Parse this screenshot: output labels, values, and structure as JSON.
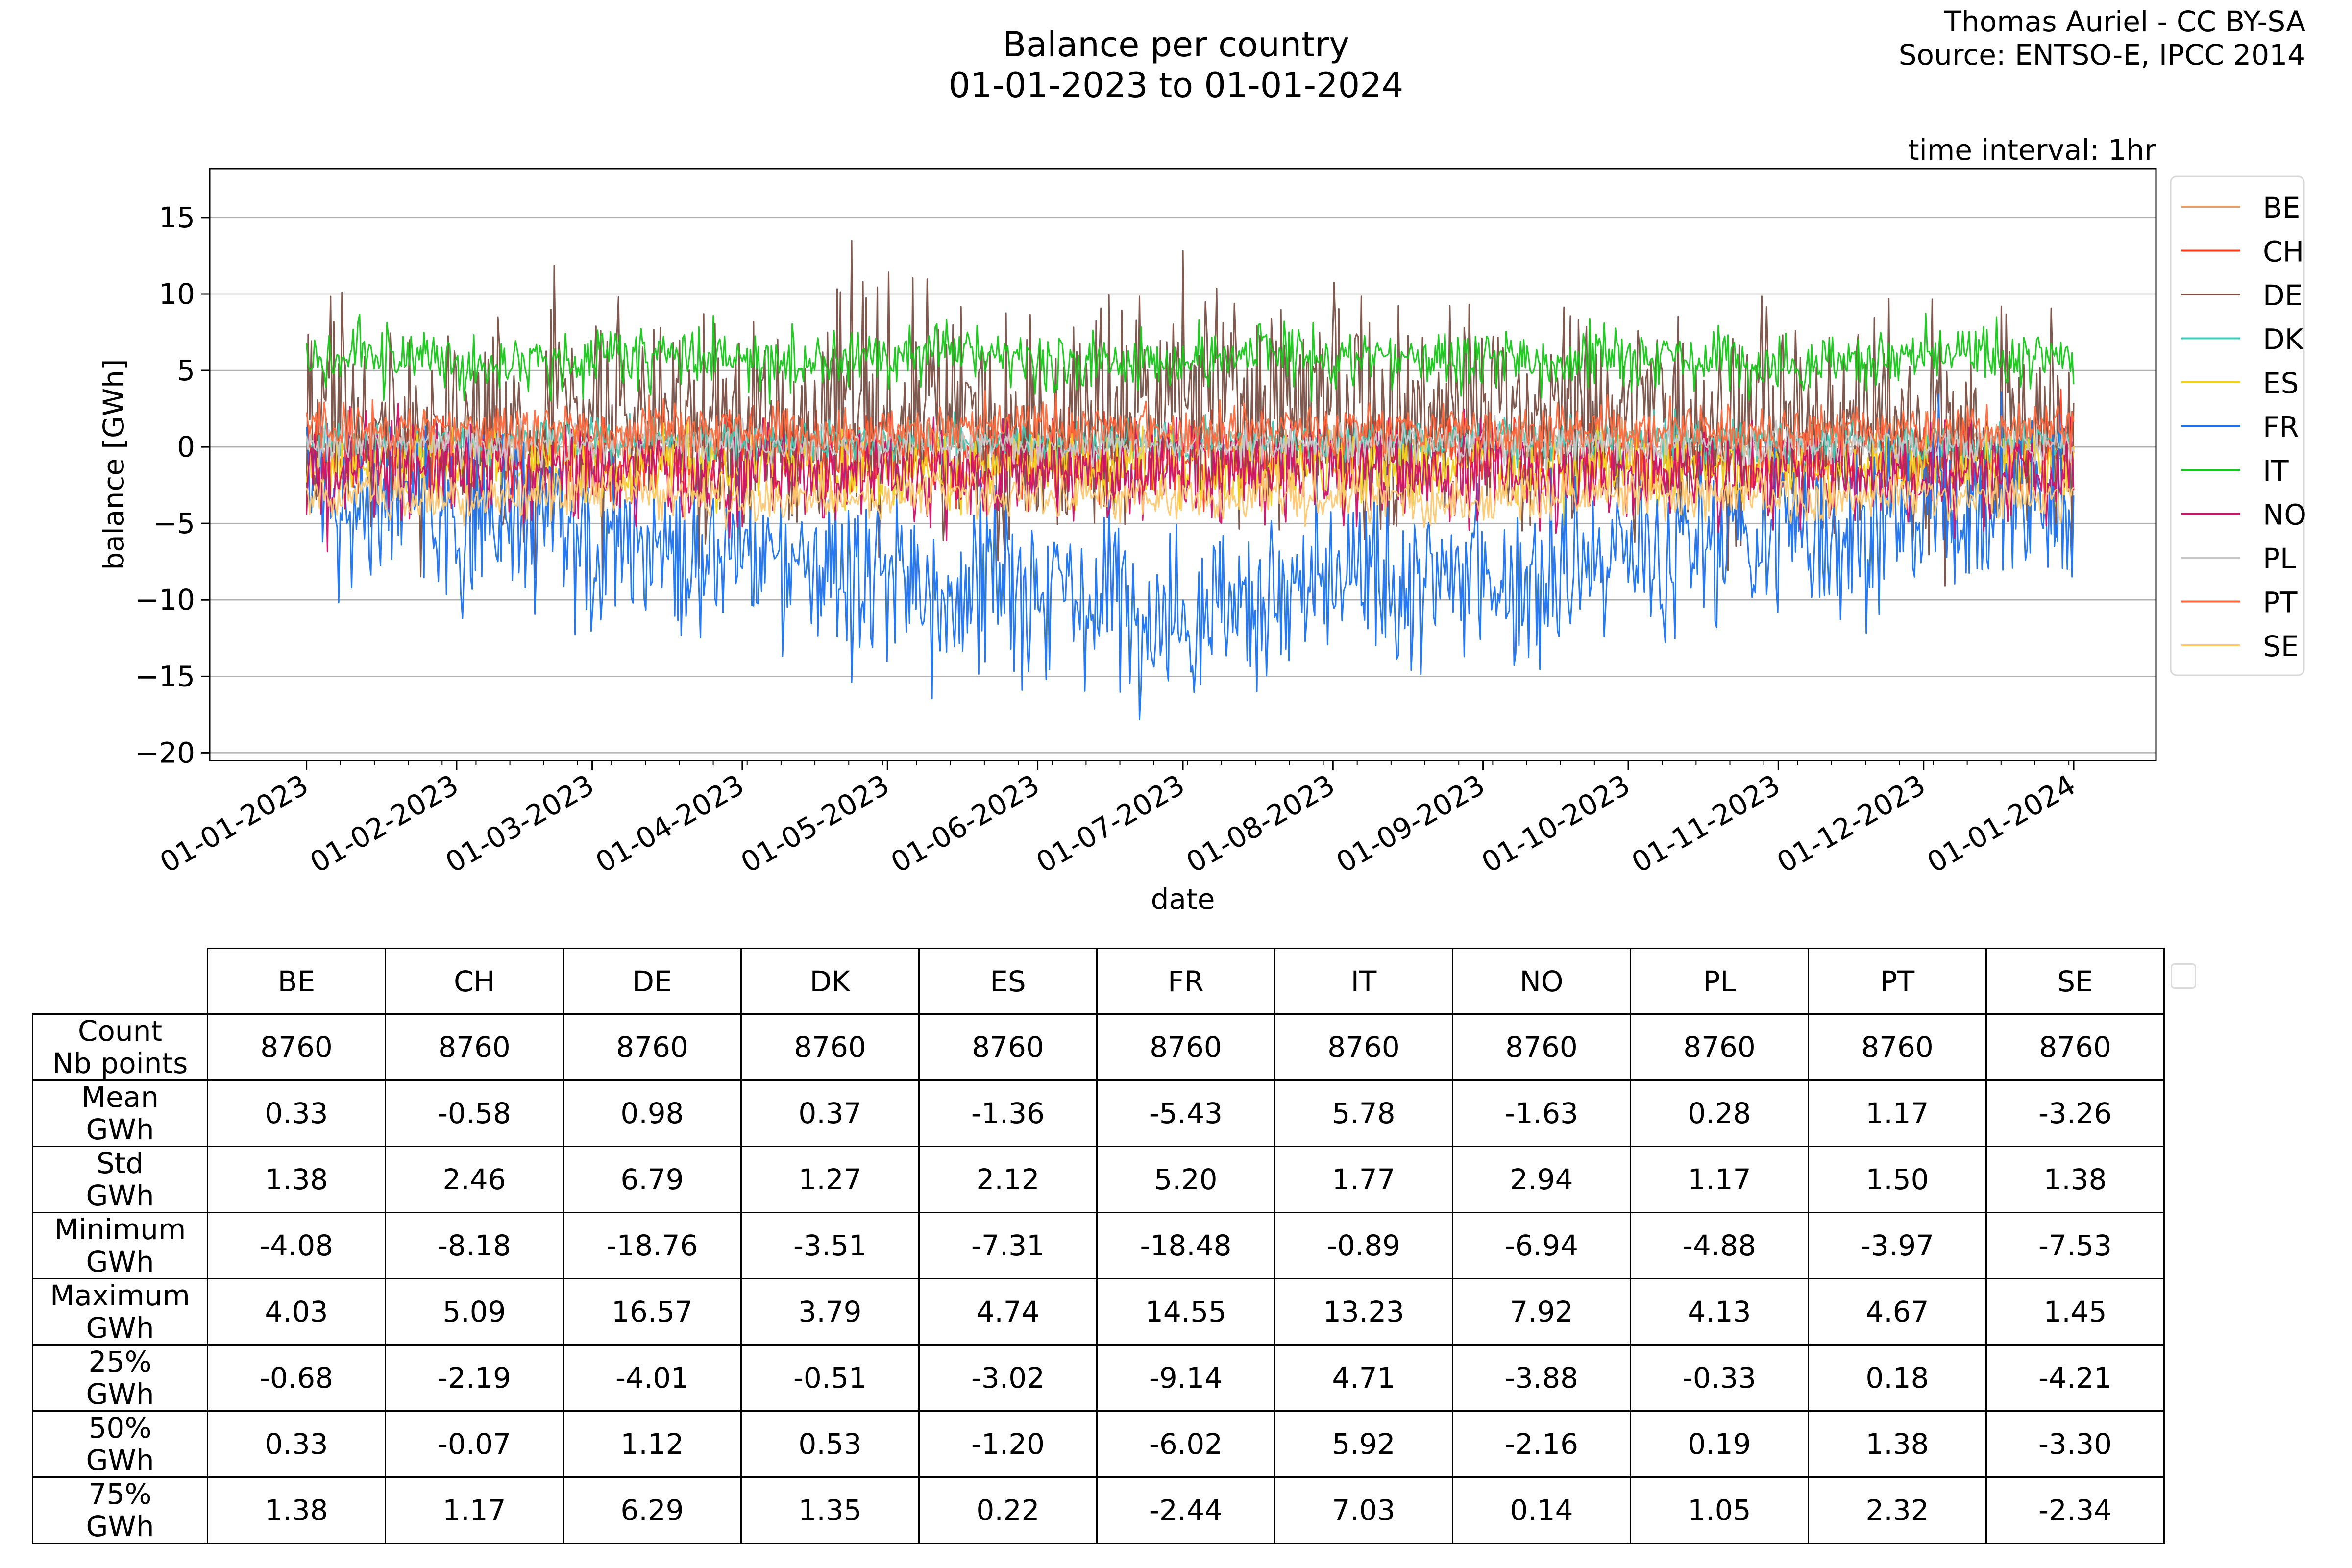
{
  "credit": {
    "line1": "Thomas Auriel - CC BY-SA",
    "line2": "Source: ENTSO-E, IPCC 2014"
  },
  "chart_data": {
    "type": "line",
    "title": "Balance per country",
    "subtitle": "01-01-2023 to 01-01-2024",
    "annotation": "time interval: 1hr",
    "xlabel": "date",
    "ylabel": "balance [GWh]",
    "ylim": [
      -20.5,
      18.2
    ],
    "xlim": [
      "2022-12-12",
      "2024-01-18"
    ],
    "x_ticks": [
      "01-01-2023",
      "01-02-2023",
      "01-03-2023",
      "01-04-2023",
      "01-05-2023",
      "01-06-2023",
      "01-07-2023",
      "01-08-2023",
      "01-09-2023",
      "01-10-2023",
      "01-11-2023",
      "01-12-2023",
      "01-01-2024"
    ],
    "y_ticks": [
      15,
      10,
      5,
      0,
      -5,
      -10,
      -15,
      -20
    ],
    "grid": "horizontal",
    "legend_position": "right",
    "series": [
      {
        "name": "BE",
        "color": "#e0a070",
        "mean": 0.33,
        "std": 1.38,
        "min": -4.08,
        "max": 4.03
      },
      {
        "name": "CH",
        "color": "#ff3b1f",
        "mean": -0.58,
        "std": 2.46,
        "min": -8.18,
        "max": 5.09
      },
      {
        "name": "DE",
        "color": "#7a5044",
        "mean": 0.98,
        "std": 6.79,
        "min": -18.76,
        "max": 16.57
      },
      {
        "name": "DK",
        "color": "#3cc8b4",
        "mean": 0.37,
        "std": 1.27,
        "min": -3.51,
        "max": 3.79
      },
      {
        "name": "ES",
        "color": "#f2d21a",
        "mean": -1.36,
        "std": 2.12,
        "min": -7.31,
        "max": 4.74
      },
      {
        "name": "FR",
        "color": "#1a72f0",
        "mean": -5.43,
        "std": 5.2,
        "min": -18.48,
        "max": 14.55
      },
      {
        "name": "IT",
        "color": "#16c817",
        "mean": 5.78,
        "std": 1.77,
        "min": -0.89,
        "max": 13.23
      },
      {
        "name": "NO",
        "color": "#d0106a",
        "mean": -1.63,
        "std": 2.94,
        "min": -6.94,
        "max": 7.92
      },
      {
        "name": "PL",
        "color": "#c8c8c8",
        "mean": 0.28,
        "std": 1.17,
        "min": -4.88,
        "max": 4.13
      },
      {
        "name": "PT",
        "color": "#ff6a3d",
        "mean": 1.17,
        "std": 1.5,
        "min": -3.97,
        "max": 4.67
      },
      {
        "name": "SE",
        "color": "#ffc870",
        "mean": -3.26,
        "std": 1.38,
        "min": -7.53,
        "max": 1.45
      }
    ]
  },
  "table": {
    "columns": [
      "BE",
      "CH",
      "DE",
      "DK",
      "ES",
      "FR",
      "IT",
      "NO",
      "PL",
      "PT",
      "SE"
    ],
    "rows": [
      {
        "label1": "Count",
        "label2": "Nb points",
        "values": [
          "8760",
          "8760",
          "8760",
          "8760",
          "8760",
          "8760",
          "8760",
          "8760",
          "8760",
          "8760",
          "8760"
        ]
      },
      {
        "label1": "Mean",
        "label2": "GWh",
        "values": [
          "0.33",
          "-0.58",
          "0.98",
          "0.37",
          "-1.36",
          "-5.43",
          "5.78",
          "-1.63",
          "0.28",
          "1.17",
          "-3.26"
        ]
      },
      {
        "label1": "Std",
        "label2": "GWh",
        "values": [
          "1.38",
          "2.46",
          "6.79",
          "1.27",
          "2.12",
          "5.20",
          "1.77",
          "2.94",
          "1.17",
          "1.50",
          "1.38"
        ]
      },
      {
        "label1": "Minimum",
        "label2": "GWh",
        "values": [
          "-4.08",
          "-8.18",
          "-18.76",
          "-3.51",
          "-7.31",
          "-18.48",
          "-0.89",
          "-6.94",
          "-4.88",
          "-3.97",
          "-7.53"
        ]
      },
      {
        "label1": "Maximum",
        "label2": "GWh",
        "values": [
          "4.03",
          "5.09",
          "16.57",
          "3.79",
          "4.74",
          "14.55",
          "13.23",
          "7.92",
          "4.13",
          "4.67",
          "1.45"
        ]
      },
      {
        "label1": "25%",
        "label2": "GWh",
        "values": [
          "-0.68",
          "-2.19",
          "-4.01",
          "-0.51",
          "-3.02",
          "-9.14",
          "4.71",
          "-3.88",
          "-0.33",
          "0.18",
          "-4.21"
        ]
      },
      {
        "label1": "50%",
        "label2": "GWh",
        "values": [
          "0.33",
          "-0.07",
          "1.12",
          "0.53",
          "-1.20",
          "-6.02",
          "5.92",
          "-2.16",
          "0.19",
          "1.38",
          "-3.30"
        ]
      },
      {
        "label1": "75%",
        "label2": "GWh",
        "values": [
          "1.38",
          "1.17",
          "6.29",
          "1.35",
          "0.22",
          "-2.44",
          "7.03",
          "0.14",
          "1.05",
          "2.32",
          "-2.34"
        ]
      }
    ]
  }
}
